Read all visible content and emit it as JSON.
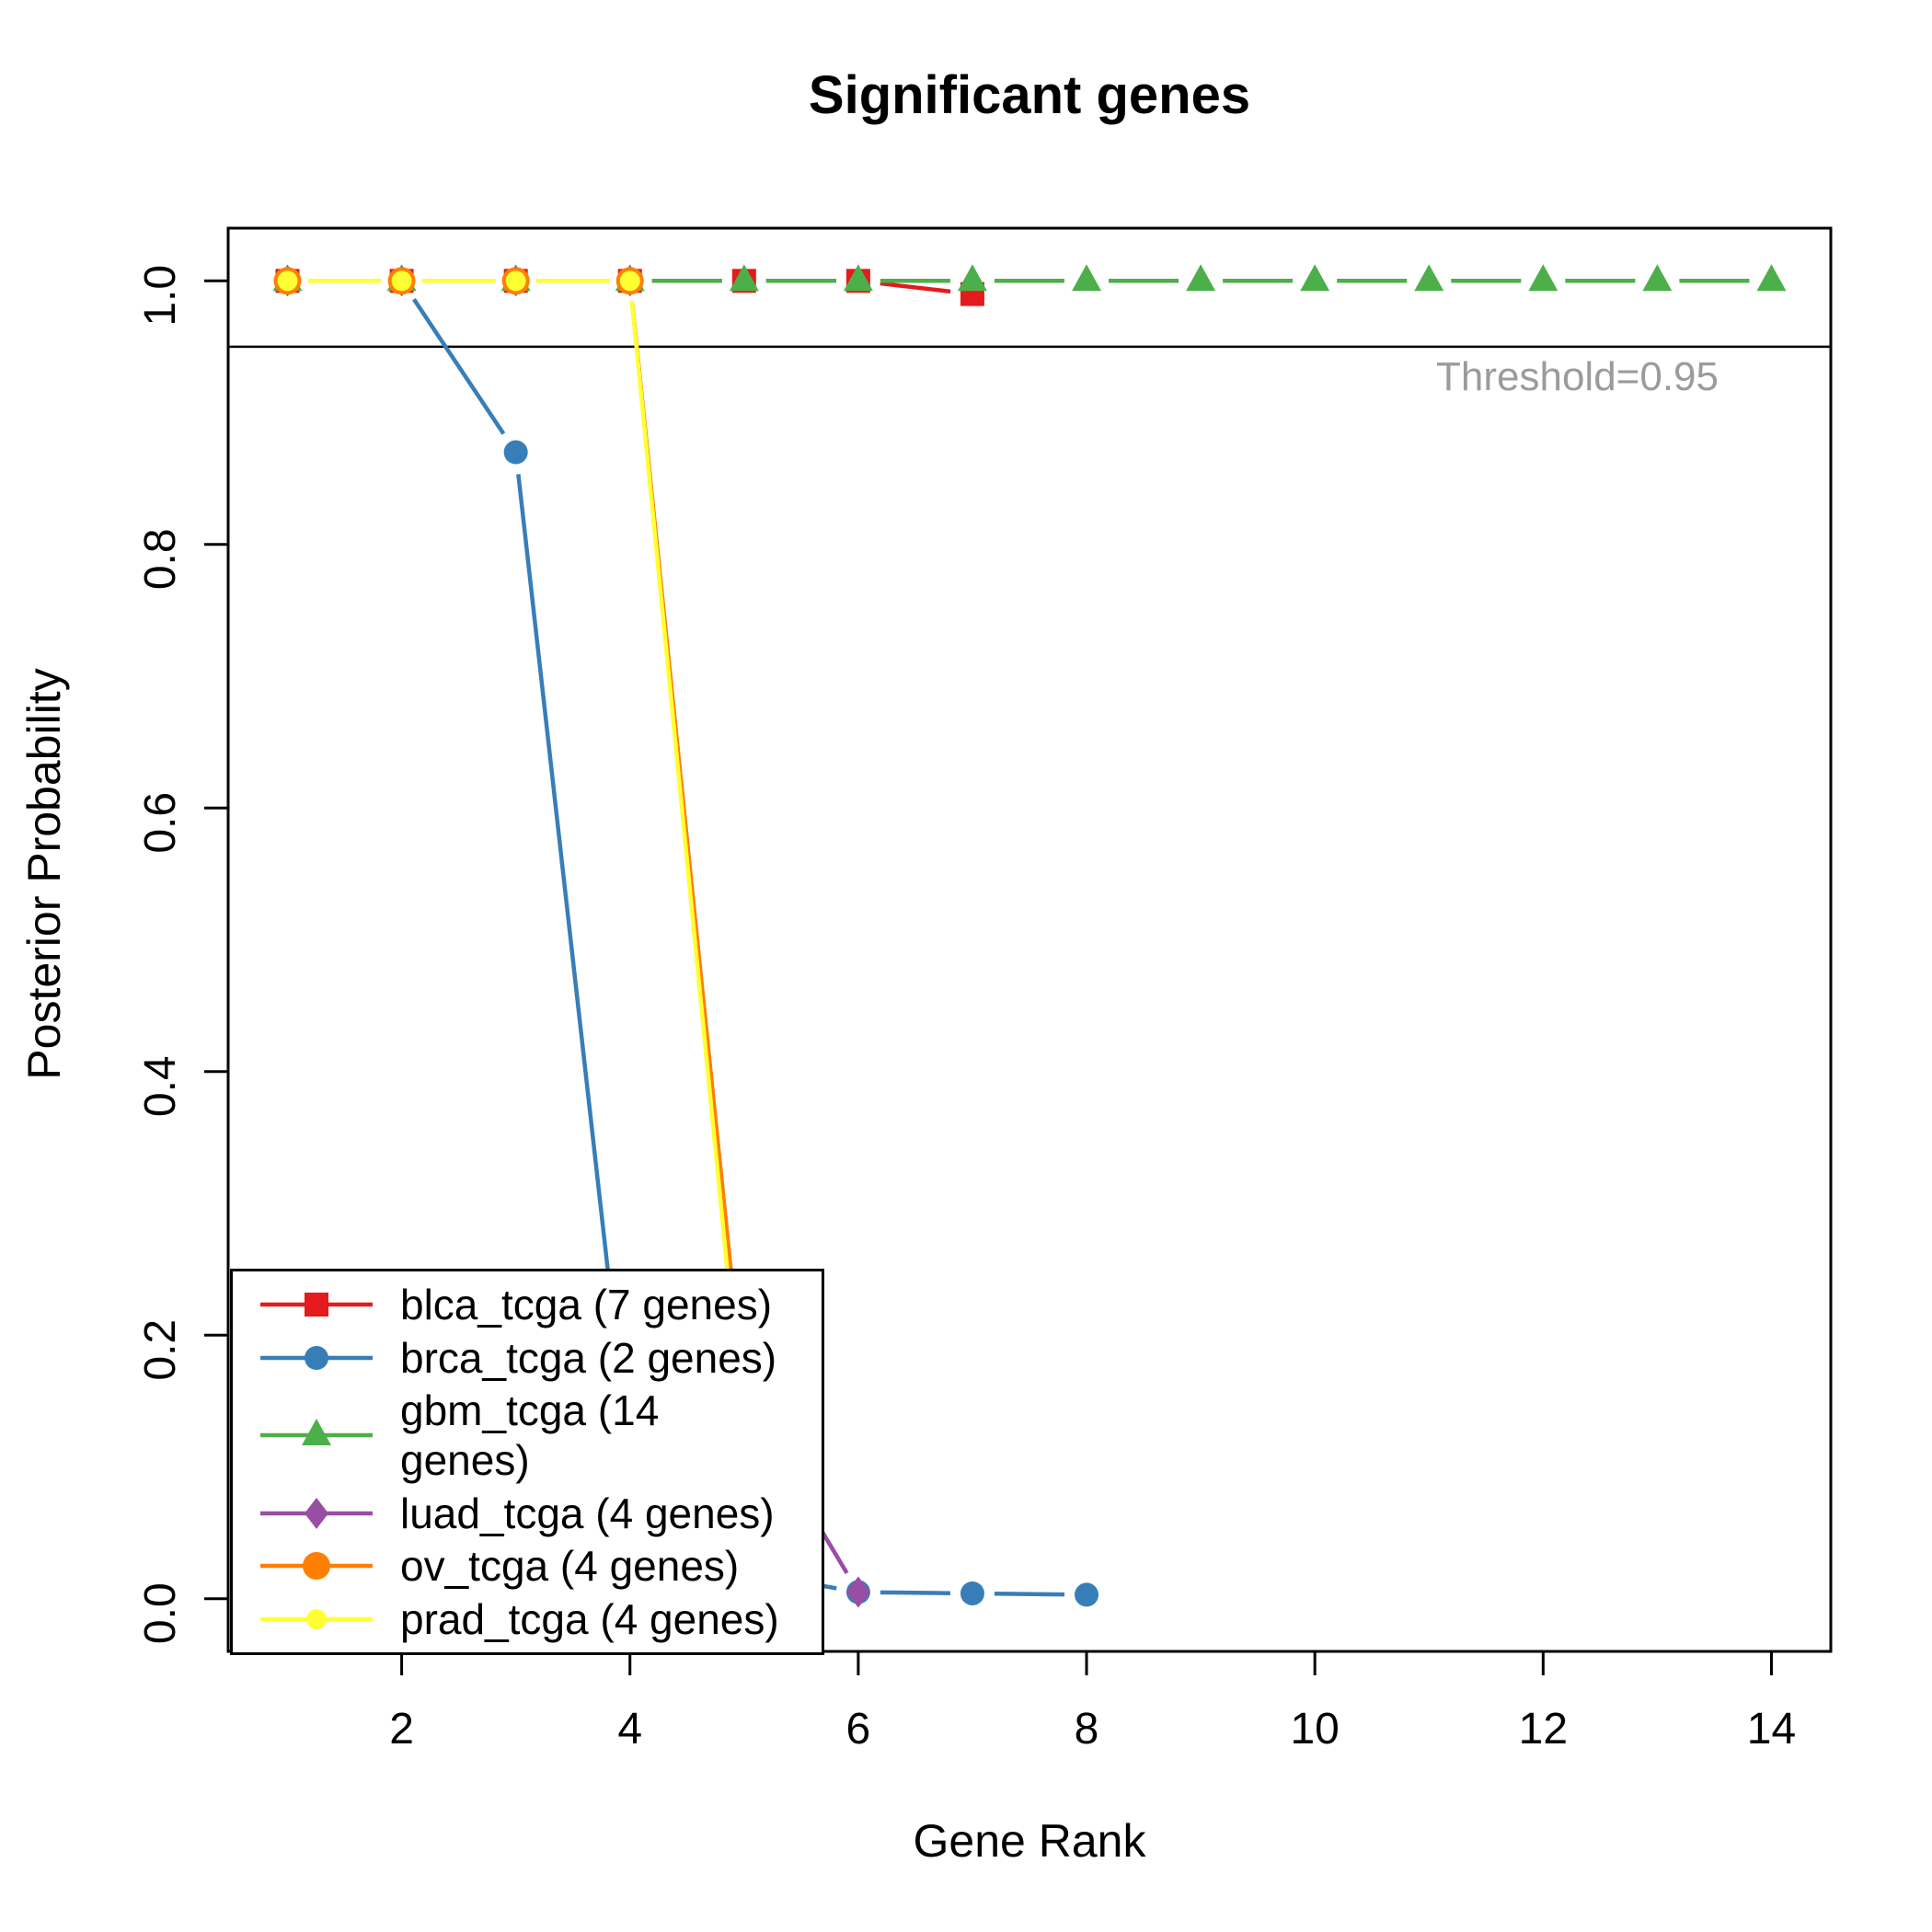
{
  "chart_data": {
    "type": "line",
    "title": "Significant genes",
    "xlabel": "Gene Rank",
    "ylabel": "Posterior Probability",
    "xlim": [
      0.48,
      14.52
    ],
    "ylim": [
      -0.04,
      1.04
    ],
    "x_ticks": [
      2,
      4,
      6,
      8,
      10,
      12,
      14
    ],
    "y_ticks": [
      "0.0",
      "0.2",
      "0.4",
      "0.6",
      "0.8",
      "1.0"
    ],
    "grid": false,
    "legend_position": "bottom-left",
    "line_style": "points-and-segments",
    "threshold": {
      "value": 0.95,
      "label": "Threshold=0.95",
      "color": "#9b9b9b",
      "line_color": "#000000"
    },
    "series": [
      {
        "name": "blca_tcga (7 genes)",
        "color": "#E41A1C",
        "marker": "square",
        "x": [
          1,
          2,
          3,
          4,
          5,
          6,
          7
        ],
        "y": [
          1.0,
          1.0,
          1.0,
          1.0,
          1.0,
          1.0,
          0.99
        ]
      },
      {
        "name": "brca_tcga (2 genes)",
        "color": "#377EB8",
        "marker": "circle",
        "x": [
          1,
          2,
          3,
          4,
          5,
          6,
          7,
          8
        ],
        "y": [
          1.0,
          1.0,
          0.87,
          0.1,
          0.02,
          0.005,
          0.004,
          0.003
        ]
      },
      {
        "name": "gbm_tcga (14 genes)",
        "color": "#4DAF4A",
        "marker": "triangle",
        "x": [
          1,
          2,
          3,
          4,
          5,
          6,
          7,
          8,
          9,
          10,
          11,
          12,
          13,
          14
        ],
        "y": [
          1.0,
          1.0,
          1.0,
          1.0,
          1.0,
          1.0,
          1.0,
          1.0,
          1.0,
          1.0,
          1.0,
          1.0,
          1.0,
          1.0
        ]
      },
      {
        "name": "luad_tcga (4 genes)",
        "color": "#984EA3",
        "marker": "diamond",
        "x": [
          1,
          2,
          3,
          4,
          5,
          6
        ],
        "y": [
          1.0,
          1.0,
          1.0,
          1.0,
          0.15,
          0.005
        ]
      },
      {
        "name": "ov_tcga (4 genes)",
        "color": "#FF7F00",
        "marker": "circle",
        "size": 15,
        "x": [
          1,
          2,
          3,
          4,
          5
        ],
        "y": [
          1.0,
          1.0,
          1.0,
          1.0,
          0.15
        ]
      },
      {
        "name": "prad_tcga (4 genes)",
        "color": "#FFFF33",
        "marker": "circle",
        "size": 11,
        "x": [
          1,
          2,
          3,
          4,
          5
        ],
        "y": [
          1.0,
          1.0,
          1.0,
          1.0,
          0.12
        ]
      }
    ]
  }
}
